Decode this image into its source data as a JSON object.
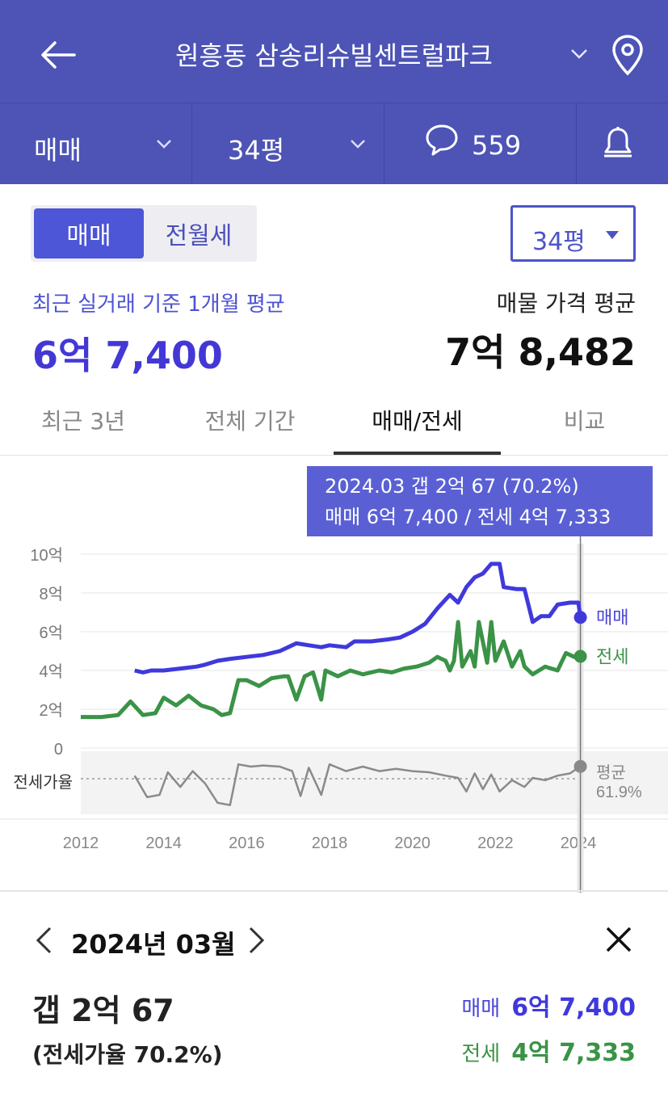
{
  "header": {
    "title": "원흥동 삼송리슈빌센트럴파크",
    "back_icon": "arrow-left-icon",
    "location_icon": "map-pin-icon"
  },
  "subbar": {
    "deal_type": "매매",
    "area": "34평",
    "comment_count": "559",
    "comment_icon": "speech-bubble-icon",
    "alarm_icon": "bell-icon"
  },
  "segment": {
    "sale": "매매",
    "rent": "전월세"
  },
  "area_dropdown": "34평",
  "summary": {
    "recent_label": "최근 실거래 기준 1개월 평균",
    "recent_value": "6억 7,400",
    "listing_label": "매물 가격 평균",
    "listing_value": "7억 8,482"
  },
  "tabs": [
    "최근 3년",
    "전체 기간",
    "매매/전세",
    "비교"
  ],
  "active_tab": "매매/전세",
  "tooltip": {
    "line1": "2024.03  갭 2억 67 (70.2%)",
    "line2": "매매 6억 7,400 / 전세 4억 7,333"
  },
  "colors": {
    "brand": "#4d54b5",
    "sale": "#3f39dc",
    "jeonse": "#3a9346",
    "ratio": "#8a8a8a"
  },
  "chart_data": {
    "type": "line",
    "y_tick_labels": [
      "10억",
      "8억",
      "6억",
      "4억",
      "2억",
      "0"
    ],
    "y_ticks": [
      10,
      8,
      6,
      4,
      2,
      0
    ],
    "ylim": [
      0,
      10
    ],
    "x_tick_labels": [
      "2012",
      "2014",
      "2016",
      "2018",
      "2020",
      "2022",
      "2024"
    ],
    "xlim": [
      2012,
      2024.25
    ],
    "ratio_label": "전세가율",
    "ratio_avg_label": "평균",
    "ratio_avg_value": "61.9%",
    "series": [
      {
        "name": "매매",
        "points": [
          [
            2013.3,
            4.0
          ],
          [
            2013.5,
            3.9
          ],
          [
            2013.7,
            4.0
          ],
          [
            2014.0,
            4.0
          ],
          [
            2014.4,
            4.1
          ],
          [
            2014.8,
            4.2
          ],
          [
            2015.0,
            4.3
          ],
          [
            2015.3,
            4.5
          ],
          [
            2015.6,
            4.6
          ],
          [
            2016.0,
            4.7
          ],
          [
            2016.4,
            4.8
          ],
          [
            2016.8,
            5.0
          ],
          [
            2017.0,
            5.2
          ],
          [
            2017.2,
            5.4
          ],
          [
            2017.5,
            5.3
          ],
          [
            2017.8,
            5.2
          ],
          [
            2018.0,
            5.3
          ],
          [
            2018.4,
            5.2
          ],
          [
            2018.6,
            5.5
          ],
          [
            2019.0,
            5.5
          ],
          [
            2019.4,
            5.6
          ],
          [
            2019.7,
            5.7
          ],
          [
            2020.0,
            6.0
          ],
          [
            2020.3,
            6.4
          ],
          [
            2020.6,
            7.2
          ],
          [
            2020.9,
            7.9
          ],
          [
            2021.1,
            7.5
          ],
          [
            2021.3,
            8.3
          ],
          [
            2021.5,
            8.8
          ],
          [
            2021.7,
            9.0
          ],
          [
            2021.9,
            9.5
          ],
          [
            2022.1,
            9.5
          ],
          [
            2022.2,
            8.3
          ],
          [
            2022.5,
            8.2
          ],
          [
            2022.7,
            8.2
          ],
          [
            2022.9,
            6.5
          ],
          [
            2023.1,
            6.8
          ],
          [
            2023.3,
            6.8
          ],
          [
            2023.5,
            7.4
          ],
          [
            2023.8,
            7.5
          ],
          [
            2024.0,
            7.5
          ],
          [
            2024.05,
            6.74
          ]
        ]
      },
      {
        "name": "전세",
        "points": [
          [
            2012.0,
            1.6
          ],
          [
            2012.5,
            1.6
          ],
          [
            2012.9,
            1.7
          ],
          [
            2013.2,
            2.4
          ],
          [
            2013.5,
            1.7
          ],
          [
            2013.8,
            1.8
          ],
          [
            2014.0,
            2.6
          ],
          [
            2014.3,
            2.2
          ],
          [
            2014.6,
            2.7
          ],
          [
            2014.9,
            2.2
          ],
          [
            2015.2,
            2.0
          ],
          [
            2015.4,
            1.7
          ],
          [
            2015.6,
            1.8
          ],
          [
            2015.8,
            3.5
          ],
          [
            2016.0,
            3.5
          ],
          [
            2016.3,
            3.2
          ],
          [
            2016.6,
            3.6
          ],
          [
            2016.9,
            3.7
          ],
          [
            2017.0,
            3.7
          ],
          [
            2017.2,
            2.5
          ],
          [
            2017.4,
            3.7
          ],
          [
            2017.6,
            3.9
          ],
          [
            2017.8,
            2.5
          ],
          [
            2017.9,
            4.0
          ],
          [
            2018.2,
            3.7
          ],
          [
            2018.5,
            4.0
          ],
          [
            2018.8,
            3.8
          ],
          [
            2019.2,
            4.0
          ],
          [
            2019.5,
            3.9
          ],
          [
            2019.8,
            4.1
          ],
          [
            2020.1,
            4.2
          ],
          [
            2020.4,
            4.4
          ],
          [
            2020.6,
            4.7
          ],
          [
            2020.8,
            4.5
          ],
          [
            2020.9,
            4.0
          ],
          [
            2021.0,
            4.5
          ],
          [
            2021.1,
            6.5
          ],
          [
            2021.2,
            4.2
          ],
          [
            2021.4,
            5.0
          ],
          [
            2021.5,
            4.2
          ],
          [
            2021.6,
            6.5
          ],
          [
            2021.8,
            4.4
          ],
          [
            2021.9,
            6.5
          ],
          [
            2022.0,
            4.5
          ],
          [
            2022.2,
            5.5
          ],
          [
            2022.4,
            4.2
          ],
          [
            2022.6,
            5.0
          ],
          [
            2022.7,
            4.2
          ],
          [
            2022.9,
            3.8
          ],
          [
            2023.2,
            4.2
          ],
          [
            2023.5,
            4.0
          ],
          [
            2023.7,
            4.9
          ],
          [
            2023.9,
            4.7
          ],
          [
            2024.05,
            4.73
          ]
        ]
      },
      {
        "name": "전세가율",
        "points": [
          [
            2013.3,
            0.62
          ],
          [
            2013.6,
            0.43
          ],
          [
            2013.9,
            0.45
          ],
          [
            2014.1,
            0.65
          ],
          [
            2014.4,
            0.52
          ],
          [
            2014.7,
            0.66
          ],
          [
            2015.0,
            0.55
          ],
          [
            2015.3,
            0.38
          ],
          [
            2015.6,
            0.36
          ],
          [
            2015.8,
            0.72
          ],
          [
            2016.1,
            0.7
          ],
          [
            2016.4,
            0.71
          ],
          [
            2016.8,
            0.7
          ],
          [
            2017.1,
            0.66
          ],
          [
            2017.3,
            0.44
          ],
          [
            2017.5,
            0.69
          ],
          [
            2017.8,
            0.45
          ],
          [
            2018.0,
            0.72
          ],
          [
            2018.4,
            0.66
          ],
          [
            2018.8,
            0.7
          ],
          [
            2019.2,
            0.66
          ],
          [
            2019.6,
            0.68
          ],
          [
            2020.0,
            0.66
          ],
          [
            2020.4,
            0.65
          ],
          [
            2020.8,
            0.62
          ],
          [
            2021.1,
            0.6
          ],
          [
            2021.3,
            0.48
          ],
          [
            2021.5,
            0.64
          ],
          [
            2021.7,
            0.5
          ],
          [
            2021.9,
            0.63
          ],
          [
            2022.1,
            0.48
          ],
          [
            2022.4,
            0.58
          ],
          [
            2022.7,
            0.52
          ],
          [
            2022.9,
            0.6
          ],
          [
            2023.2,
            0.58
          ],
          [
            2023.5,
            0.62
          ],
          [
            2023.8,
            0.64
          ],
          [
            2024.05,
            0.702
          ]
        ]
      }
    ],
    "ratio_ylim": [
      0.3,
      0.8
    ],
    "selected_x": 2024.05
  },
  "detail": {
    "month": "2024년 03월",
    "gap": "갭 2억 67",
    "ratio": "(전세가율 70.2%)",
    "sale_label": "매매",
    "sale_value": "6억 7,400",
    "jeonse_label": "전세",
    "jeonse_value": "4억 7,333"
  }
}
